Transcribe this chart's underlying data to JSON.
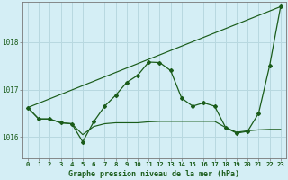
{
  "title": "Graphe pression niveau de la mer (hPa)",
  "background_color": "#d4eef5",
  "grid_color": "#b8d8e0",
  "line_color": "#1a5c1a",
  "xlim": [
    -0.5,
    23.5
  ],
  "ylim": [
    1015.55,
    1018.85
  ],
  "hours": [
    0,
    1,
    2,
    3,
    4,
    5,
    6,
    7,
    8,
    9,
    10,
    11,
    12,
    13,
    14,
    15,
    16,
    17,
    18,
    19,
    20,
    21,
    22,
    23
  ],
  "series_main": [
    1016.62,
    1016.38,
    1016.38,
    1016.3,
    1016.28,
    1015.9,
    1016.32,
    1016.65,
    1016.88,
    1017.15,
    1017.3,
    1017.58,
    1017.57,
    1017.4,
    1016.82,
    1016.65,
    1016.72,
    1016.65,
    1016.2,
    1016.08,
    1016.12,
    1016.5,
    1017.5,
    1018.75
  ],
  "series_trend": [
    1016.62,
    1018.75
  ],
  "series_trend_x": [
    0,
    23
  ],
  "series_flat": [
    1016.62,
    1016.38,
    1016.38,
    1016.3,
    1016.28,
    1016.05,
    1016.22,
    1016.28,
    1016.3,
    1016.3,
    1016.3,
    1016.32,
    1016.33,
    1016.33,
    1016.33,
    1016.33,
    1016.33,
    1016.33,
    1016.2,
    1016.1,
    1016.13,
    1016.15,
    1016.16,
    1016.16
  ],
  "yticks": [
    1016,
    1017,
    1018
  ],
  "title_fontsize": 6.0,
  "tick_fontsize": 5.2
}
